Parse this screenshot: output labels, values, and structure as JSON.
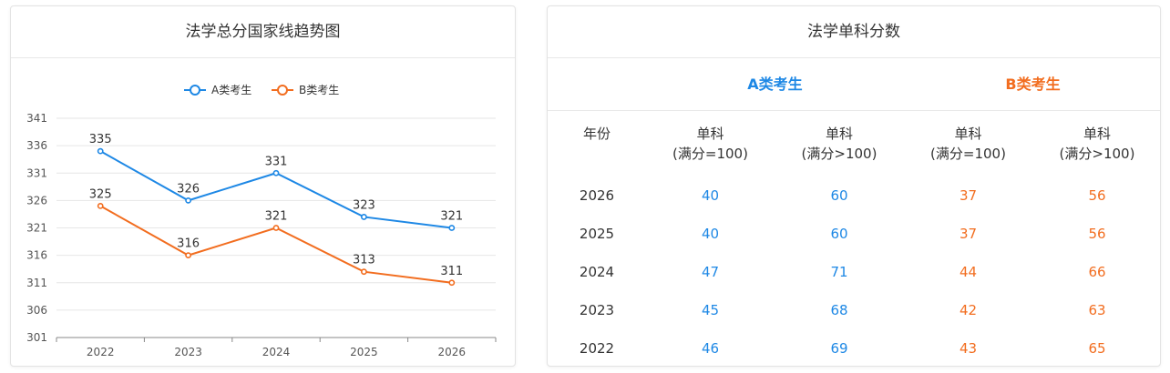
{
  "left_panel": {
    "title": "法学总分国家线趋势图"
  },
  "right_panel": {
    "title": "法学单科分数",
    "group_a": "A类考生",
    "group_b": "B类考生",
    "col_year": "年份",
    "col_single_100_line1": "单科",
    "col_single_100_line2": "(满分=100)",
    "col_single_gt100_line1": "单科",
    "col_single_gt100_line2": "(满分>100)",
    "rows": [
      {
        "year": "2026",
        "a1": "40",
        "a2": "60",
        "b1": "37",
        "b2": "56"
      },
      {
        "year": "2025",
        "a1": "40",
        "a2": "60",
        "b1": "37",
        "b2": "56"
      },
      {
        "year": "2024",
        "a1": "47",
        "a2": "71",
        "b1": "44",
        "b2": "66"
      },
      {
        "year": "2023",
        "a1": "45",
        "a2": "68",
        "b1": "42",
        "b2": "63"
      },
      {
        "year": "2022",
        "a1": "46",
        "a2": "69",
        "b1": "43",
        "b2": "65"
      }
    ]
  },
  "colors": {
    "a": "#1e88e5",
    "b": "#f26d1f"
  },
  "chart_data": {
    "type": "line",
    "title": "法学总分国家线趋势图",
    "categories": [
      "2022",
      "2023",
      "2024",
      "2025",
      "2026"
    ],
    "series": [
      {
        "name": "A类考生",
        "values": [
          335,
          326,
          331,
          323,
          321
        ]
      },
      {
        "name": "B类考生",
        "values": [
          325,
          316,
          321,
          313,
          311
        ]
      }
    ],
    "ylim": [
      301,
      341
    ],
    "yticks": [
      301,
      306,
      311,
      316,
      321,
      326,
      331,
      336,
      341
    ],
    "grid": true,
    "legend": "top-center",
    "data_labels": true
  }
}
